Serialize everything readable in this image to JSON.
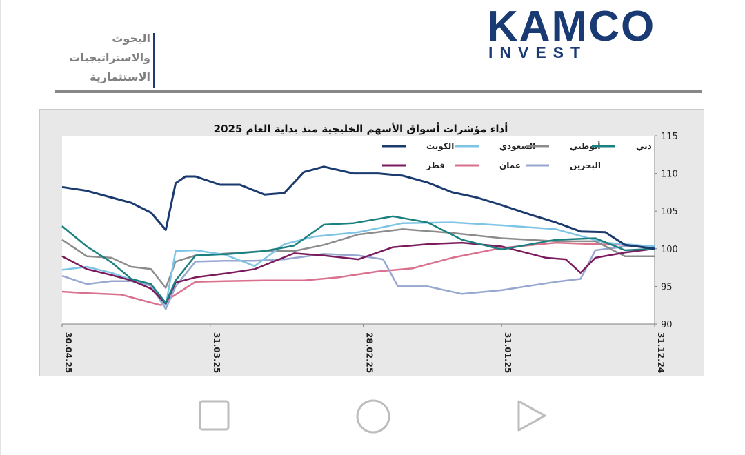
{
  "header": {
    "department_lines": [
      "البحوث",
      "والاستراتيجيات",
      "الاستثمارية"
    ],
    "logo_main": "KAMCO",
    "logo_sub": "INVEST",
    "brand_color": "#1a3a73"
  },
  "chart_data": {
    "type": "line",
    "title": "أداء مؤشرات أسواق الأسهم الخليجية منذ بداية العام 2025",
    "xlabel": "",
    "ylabel": "",
    "ylim": [
      90,
      115
    ],
    "yticks": [
      90,
      95,
      100,
      105,
      110,
      115
    ],
    "x_reversed": true,
    "xticks": [
      "31.12.24",
      "31.01.25",
      "28.02.25",
      "31.03.25",
      "30.04.25"
    ],
    "xlim": [
      "2024-12-31",
      "2025-04-30"
    ],
    "y_axis_position": "right",
    "grid": false,
    "legend_position": "top",
    "series": [
      {
        "name": "الكويت",
        "color": "#1b3a6e",
        "x": [
          "2024-12-31",
          "2025-01-06",
          "2025-01-10",
          "2025-01-15",
          "2025-01-20",
          "2025-01-25",
          "2025-01-31",
          "2025-02-05",
          "2025-02-10",
          "2025-02-15",
          "2025-02-20",
          "2025-02-25",
          "2025-03-02",
          "2025-03-08",
          "2025-03-12",
          "2025-03-16",
          "2025-03-20",
          "2025-03-25",
          "2025-03-29",
          "2025-04-03",
          "2025-04-05",
          "2025-04-07",
          "2025-04-09",
          "2025-04-12",
          "2025-04-16",
          "2025-04-20",
          "2025-04-25",
          "2025-04-30"
        ],
        "values": [
          100,
          100.5,
          102.2,
          102.3,
          103.5,
          104.5,
          105.8,
          106.8,
          107.5,
          108.8,
          109.7,
          110,
          110,
          110.9,
          110.2,
          107.4,
          107.2,
          108.5,
          108.5,
          109.6,
          109.6,
          108.7,
          102.5,
          104.8,
          106.1,
          106.8,
          107.7,
          108.2
        ]
      },
      {
        "name": "السعودي",
        "color": "#7ec4e4",
        "x": [
          "2024-12-31",
          "2025-01-10",
          "2025-01-20",
          "2025-01-31",
          "2025-02-10",
          "2025-02-20",
          "2025-03-01",
          "2025-03-10",
          "2025-03-16",
          "2025-03-22",
          "2025-03-28",
          "2025-04-03",
          "2025-04-07",
          "2025-04-09",
          "2025-04-12",
          "2025-04-16",
          "2025-04-20",
          "2025-04-25",
          "2025-04-30"
        ],
        "values": [
          100.3,
          100.8,
          102.6,
          103.1,
          103.5,
          103.4,
          102.2,
          101.6,
          100.6,
          97.7,
          99.2,
          99.8,
          99.7,
          92.5,
          95.3,
          95.9,
          96.8,
          97.6,
          97.2
        ]
      },
      {
        "name": "أبوظبي",
        "color": "#8c8c8c",
        "x": [
          "2024-12-31",
          "2025-01-06",
          "2025-01-12",
          "2025-01-20",
          "2025-01-31",
          "2025-02-10",
          "2025-02-20",
          "2025-03-01",
          "2025-03-08",
          "2025-03-14",
          "2025-03-20",
          "2025-03-27",
          "2025-04-03",
          "2025-04-07",
          "2025-04-09",
          "2025-04-12",
          "2025-04-16",
          "2025-04-20",
          "2025-04-25",
          "2025-04-30"
        ],
        "values": [
          99,
          99,
          101,
          101,
          101.4,
          102.1,
          102.6,
          101.9,
          100.5,
          99.7,
          99.7,
          99.4,
          99.1,
          98.3,
          94.8,
          97.3,
          97.6,
          98.8,
          99,
          101.2
        ]
      },
      {
        "name": "دبي",
        "color": "#1a8080",
        "x": [
          "2024-12-31",
          "2025-01-06",
          "2025-01-12",
          "2025-01-20",
          "2025-01-31",
          "2025-02-08",
          "2025-02-15",
          "2025-02-22",
          "2025-03-02",
          "2025-03-08",
          "2025-03-14",
          "2025-03-20",
          "2025-03-27",
          "2025-04-03",
          "2025-04-07",
          "2025-04-09",
          "2025-04-12",
          "2025-04-16",
          "2025-04-20",
          "2025-04-25",
          "2025-04-30"
        ],
        "values": [
          100,
          99.8,
          101.4,
          101.2,
          99.9,
          101.2,
          103.5,
          104.3,
          103.4,
          103.2,
          100.4,
          99.7,
          99.3,
          99.1,
          95.8,
          92.8,
          95.3,
          96,
          98.2,
          100.3,
          103
        ]
      },
      {
        "name": "قطر",
        "color": "#7b1a5c",
        "x": [
          "2024-12-31",
          "2025-01-06",
          "2025-01-12",
          "2025-01-15",
          "2025-01-18",
          "2025-01-22",
          "2025-01-31",
          "2025-02-08",
          "2025-02-15",
          "2025-02-22",
          "2025-03-01",
          "2025-03-08",
          "2025-03-14",
          "2025-03-22",
          "2025-03-28",
          "2025-04-03",
          "2025-04-07",
          "2025-04-09",
          "2025-04-12",
          "2025-04-16",
          "2025-04-20",
          "2025-04-25",
          "2025-04-30"
        ],
        "values": [
          100,
          99.5,
          98.8,
          96.8,
          98.6,
          98.8,
          100.3,
          100.8,
          100.6,
          100.2,
          98.6,
          99.1,
          99.4,
          97.3,
          96.7,
          96.2,
          95.5,
          92.7,
          94.7,
          95.8,
          96.5,
          97.3,
          99
        ]
      },
      {
        "name": "عمان",
        "color": "#d9708e",
        "x": [
          "2024-12-31",
          "2025-01-06",
          "2025-01-12",
          "2025-01-20",
          "2025-01-31",
          "2025-02-10",
          "2025-02-18",
          "2025-02-25",
          "2025-03-05",
          "2025-03-12",
          "2025-03-20",
          "2025-03-28",
          "2025-04-03",
          "2025-04-08",
          "2025-04-10",
          "2025-04-14",
          "2025-04-18",
          "2025-04-25",
          "2025-04-30"
        ],
        "values": [
          100,
          100.5,
          100.6,
          100.8,
          100.1,
          98.8,
          97.4,
          97,
          96.2,
          95.8,
          95.8,
          95.7,
          95.6,
          93.5,
          92.5,
          93.2,
          93.9,
          94.1,
          94.3
        ]
      },
      {
        "name": "البحرين",
        "color": "#97a7cf",
        "x": [
          "2024-12-31",
          "2025-01-06",
          "2025-01-12",
          "2025-01-15",
          "2025-01-20",
          "2025-01-31",
          "2025-02-08",
          "2025-02-15",
          "2025-02-21",
          "2025-02-24",
          "2025-03-01",
          "2025-03-08",
          "2025-03-16",
          "2025-03-22",
          "2025-03-28",
          "2025-04-03",
          "2025-04-07",
          "2025-04-09",
          "2025-04-12",
          "2025-04-16",
          "2025-04-20",
          "2025-04-25",
          "2025-04-30"
        ],
        "values": [
          100.4,
          100.3,
          99.8,
          96,
          95.6,
          94.5,
          94,
          95,
          95,
          98.6,
          99.1,
          99.3,
          98.6,
          98.4,
          98.4,
          98.3,
          95,
          92,
          95.1,
          95.7,
          95.7,
          95.3,
          96.4
        ]
      }
    ]
  }
}
